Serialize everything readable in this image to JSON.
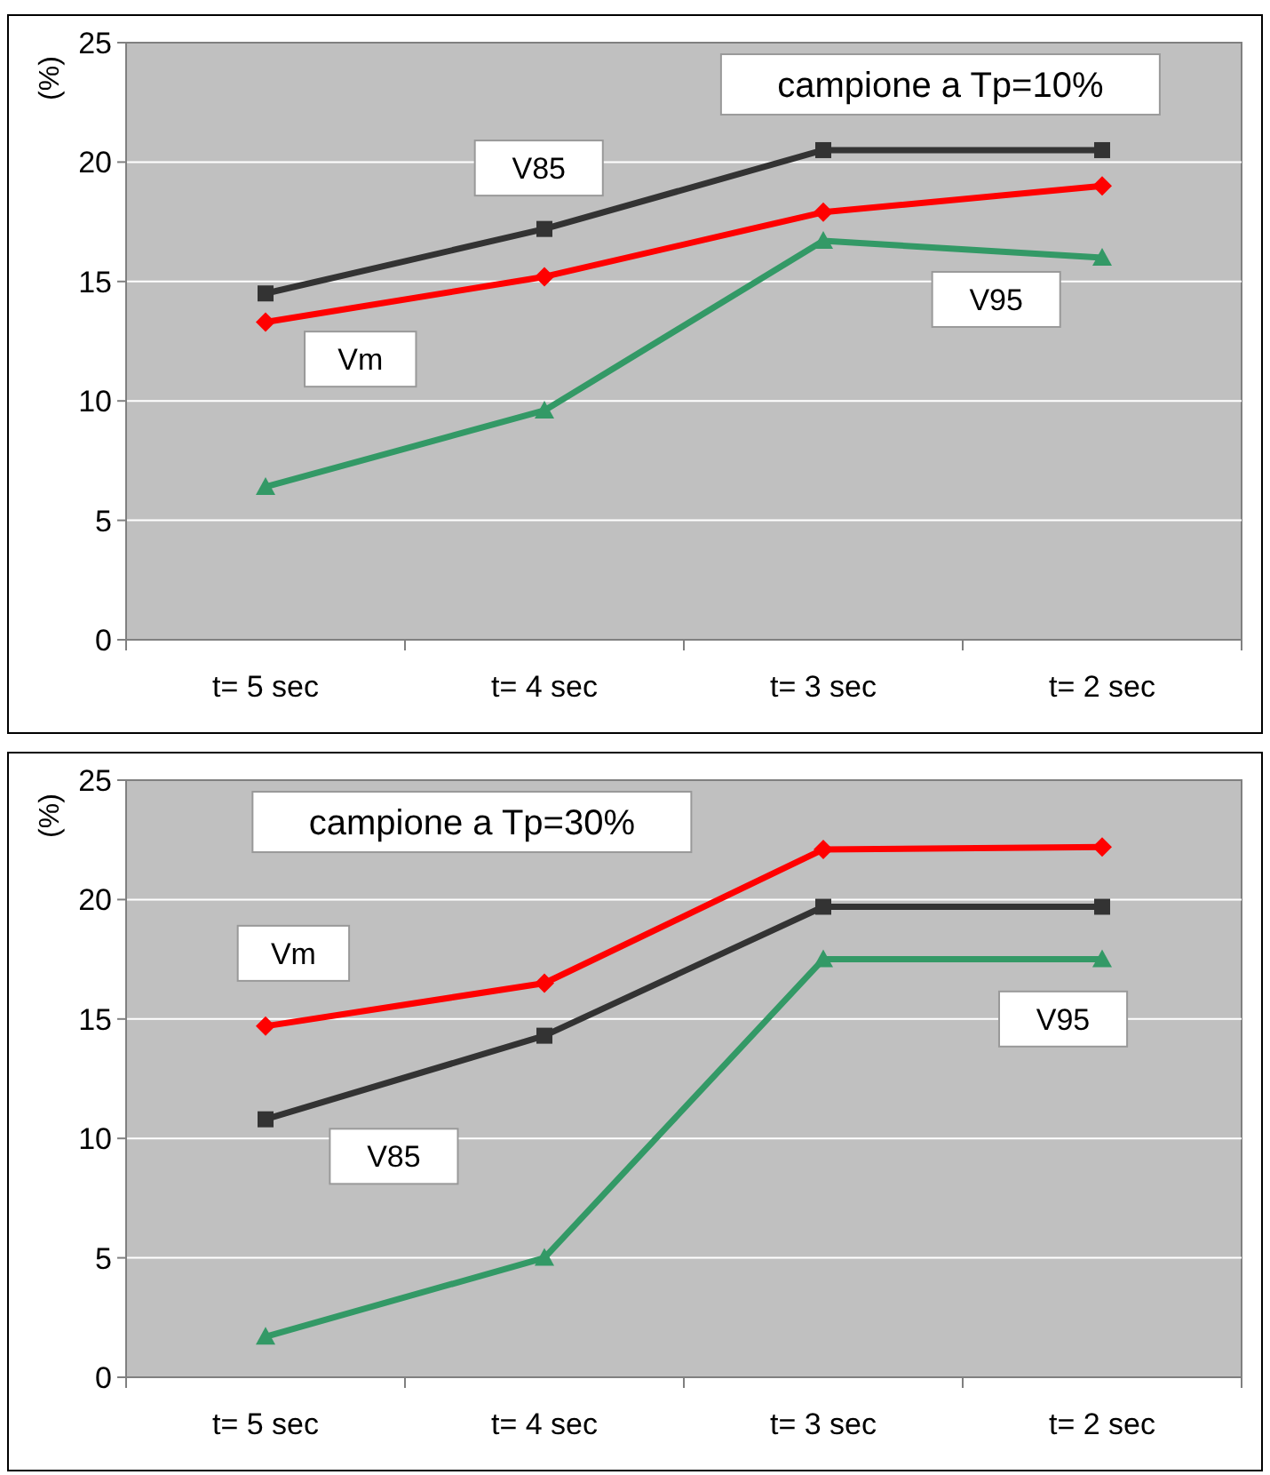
{
  "chart_data": [
    {
      "type": "line",
      "title": "campione a Tp=10%",
      "ylabel": "(%)",
      "categories": [
        "t= 5 sec",
        "t= 4 sec",
        "t= 3 sec",
        "t= 2 sec"
      ],
      "ylim": [
        0,
        25
      ],
      "yticks": [
        0,
        5,
        10,
        15,
        20,
        25
      ],
      "grid": "y",
      "series": [
        {
          "name": "V85",
          "color": "#333333",
          "marker": "square",
          "values": [
            14.5,
            17.2,
            20.5,
            20.5
          ]
        },
        {
          "name": "Vm",
          "color": "#ff0000",
          "marker": "diamond",
          "values": [
            13.3,
            15.2,
            17.9,
            19.0
          ]
        },
        {
          "name": "V95",
          "color": "#339966",
          "marker": "triangle",
          "values": [
            6.4,
            9.6,
            16.7,
            16.0
          ]
        }
      ]
    },
    {
      "type": "line",
      "title": "campione a Tp=30%",
      "ylabel": "(%)",
      "categories": [
        "t= 5 sec",
        "t= 4 sec",
        "t= 3 sec",
        "t= 2 sec"
      ],
      "ylim": [
        0,
        25
      ],
      "yticks": [
        0,
        5,
        10,
        15,
        20,
        25
      ],
      "grid": "y",
      "series": [
        {
          "name": "V85",
          "color": "#333333",
          "marker": "square",
          "values": [
            10.8,
            14.3,
            19.7,
            19.7
          ]
        },
        {
          "name": "Vm",
          "color": "#ff0000",
          "marker": "diamond",
          "values": [
            14.7,
            16.5,
            22.1,
            22.2
          ]
        },
        {
          "name": "V95",
          "color": "#339966",
          "marker": "triangle",
          "values": [
            1.7,
            5.0,
            17.5,
            17.5
          ]
        }
      ]
    }
  ]
}
